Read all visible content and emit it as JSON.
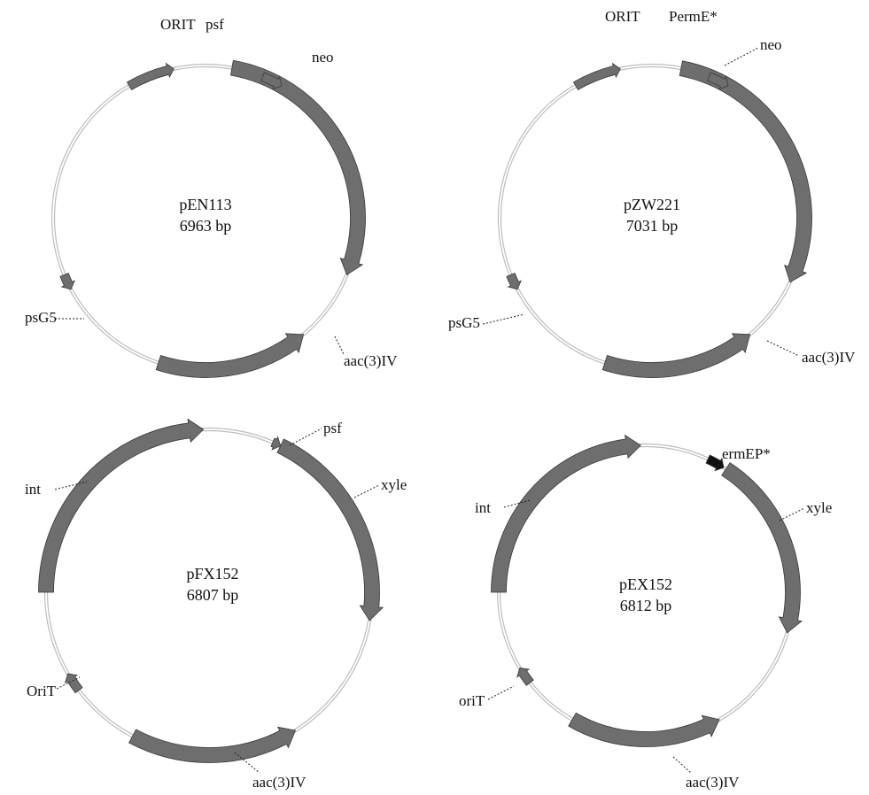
{
  "colors": {
    "feature": "#6e6e6e",
    "promoter_dark": "#111111",
    "backbone": "#bdbdbd"
  },
  "plasmids": [
    {
      "name": "pEN113",
      "size": "6963 bp",
      "features": [
        {
          "label": "neo",
          "type": "arrow",
          "strand": 1
        },
        {
          "label": "aac(3)IV",
          "type": "arrow",
          "strand": -1
        },
        {
          "label": "ORIT",
          "type": "small-arrow",
          "strand": 1
        },
        {
          "label": "psf",
          "type": "small-arrow",
          "strand": 1
        },
        {
          "label": "psG5",
          "type": "small-arrow",
          "strand": -1
        }
      ]
    },
    {
      "name": "pZW221",
      "size": "7031 bp",
      "features": [
        {
          "label": "neo",
          "type": "arrow",
          "strand": 1
        },
        {
          "label": "aac(3)IV",
          "type": "arrow",
          "strand": -1
        },
        {
          "label": "ORIT",
          "type": "small-arrow",
          "strand": 1
        },
        {
          "label": "PermE*",
          "type": "small-arrow",
          "strand": 1
        },
        {
          "label": "psG5",
          "type": "small-arrow",
          "strand": -1
        }
      ]
    },
    {
      "name": "pFX152",
      "size": "6807 bp",
      "features": [
        {
          "label": "int",
          "type": "arrow",
          "strand": 1
        },
        {
          "label": "xyle",
          "type": "arrow",
          "strand": 1
        },
        {
          "label": "aac(3)IV",
          "type": "arrow",
          "strand": -1
        },
        {
          "label": "psf",
          "type": "small-arrow",
          "strand": 1
        },
        {
          "label": "OriT",
          "type": "small-arrow",
          "strand": 1
        }
      ]
    },
    {
      "name": "pEX152",
      "size": "6812 bp",
      "features": [
        {
          "label": "int",
          "type": "arrow",
          "strand": 1
        },
        {
          "label": "xyle",
          "type": "arrow",
          "strand": 1
        },
        {
          "label": "aac(3)IV",
          "type": "arrow",
          "strand": -1
        },
        {
          "label": "ermEP*",
          "type": "small-arrow-dark",
          "strand": 1
        },
        {
          "label": "oriT",
          "type": "small-arrow",
          "strand": 1
        }
      ]
    }
  ]
}
